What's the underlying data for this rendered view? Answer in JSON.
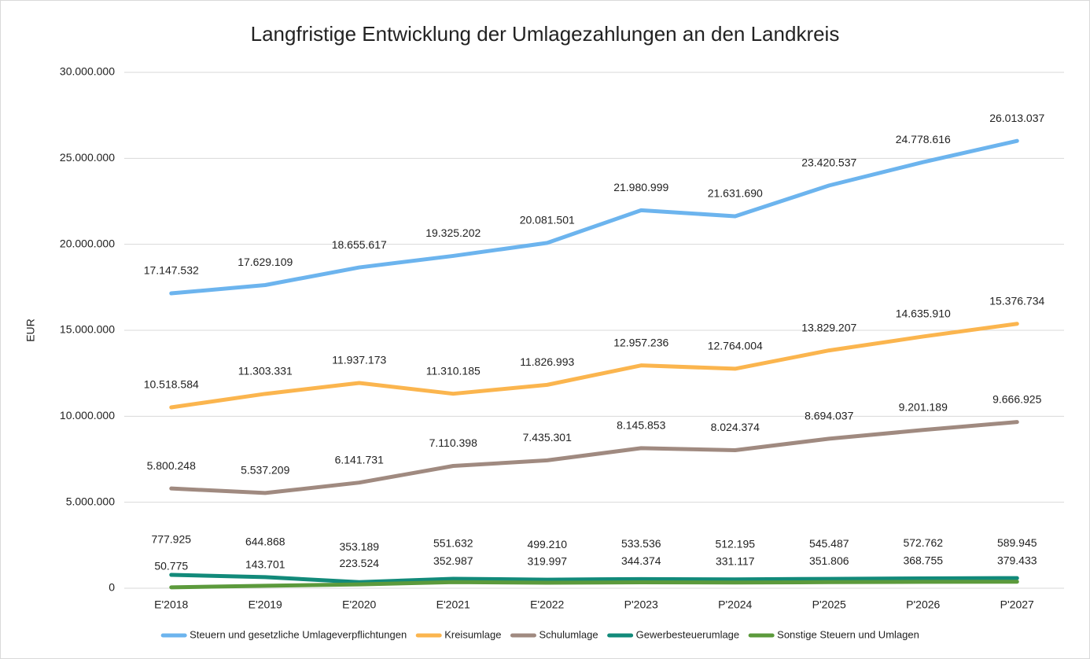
{
  "chart_data": {
    "type": "line",
    "title": "Langfristige Entwicklung der Umlagezahlungen an den Landkreis",
    "y_label": "EUR",
    "categories": [
      "E'2018",
      "E'2019",
      "E'2020",
      "E'2021",
      "E'2022",
      "P'2023",
      "P'2024",
      "P'2025",
      "P'2026",
      "P'2027"
    ],
    "series": [
      {
        "name": "Steuern und gesetzliche Umlageverpflichtungen",
        "color": "#6cb4ee",
        "values": [
          17147532,
          17629109,
          18655617,
          19325202,
          20081501,
          21980999,
          21631690,
          23420537,
          24778616,
          26013037
        ],
        "value_labels": [
          "17.147.532",
          "17.629.109",
          "18.655.617",
          "19.325.202",
          "20.081.501",
          "21.980.999",
          "21.631.690",
          "23.420.537",
          "24.778.616",
          "26.013.037"
        ]
      },
      {
        "name": "Kreisumlage",
        "color": "#fbb54e",
        "values": [
          10518584,
          11303331,
          11937173,
          11310185,
          11826993,
          12957236,
          12764004,
          13829207,
          14635910,
          15376734
        ],
        "value_labels": [
          "10.518.584",
          "11.303.331",
          "11.937.173",
          "11.310.185",
          "11.826.993",
          "12.957.236",
          "12.764.004",
          "13.829.207",
          "14.635.910",
          "15.376.734"
        ]
      },
      {
        "name": "Schulumlage",
        "color": "#a08a80",
        "values": [
          5800248,
          5537209,
          6141731,
          7110398,
          7435301,
          8145853,
          8024374,
          8694037,
          9201189,
          9666925
        ],
        "value_labels": [
          "5.800.248",
          "5.537.209",
          "6.141.731",
          "7.110.398",
          "7.435.301",
          "8.145.853",
          "8.024.374",
          "8.694.037",
          "9.201.189",
          "9.666.925"
        ]
      },
      {
        "name": "Gewerbesteuerumlage",
        "color": "#128a7a",
        "values": [
          777925,
          644868,
          353189,
          551632,
          499210,
          533536,
          512195,
          545487,
          572762,
          589945
        ],
        "value_labels": [
          "777.925",
          "644.868",
          "353.189",
          "551.632",
          "499.210",
          "533.536",
          "512.195",
          "545.487",
          "572.762",
          "589.945"
        ]
      },
      {
        "name": "Sonstige Steuern und Umlagen",
        "color": "#5c9a3c",
        "values": [
          50775,
          143701,
          223524,
          352987,
          319997,
          344374,
          331117,
          351806,
          368755,
          379433
        ],
        "value_labels": [
          "50.775",
          "143.701",
          "223.524",
          "352.987",
          "319.997",
          "344.374",
          "331.117",
          "351.806",
          "368.755",
          "379.433"
        ]
      }
    ],
    "ylim": [
      0,
      30000000
    ],
    "yticks": [
      {
        "value": 0,
        "label": "0"
      },
      {
        "value": 5000000,
        "label": "5.000.000"
      },
      {
        "value": 10000000,
        "label": "10.000.000"
      },
      {
        "value": 15000000,
        "label": "15.000.000"
      },
      {
        "value": 20000000,
        "label": "20.000.000"
      },
      {
        "value": 25000000,
        "label": "25.000.000"
      },
      {
        "value": 30000000,
        "label": "30.000.000"
      }
    ],
    "grid": true,
    "legend": "bottom"
  }
}
